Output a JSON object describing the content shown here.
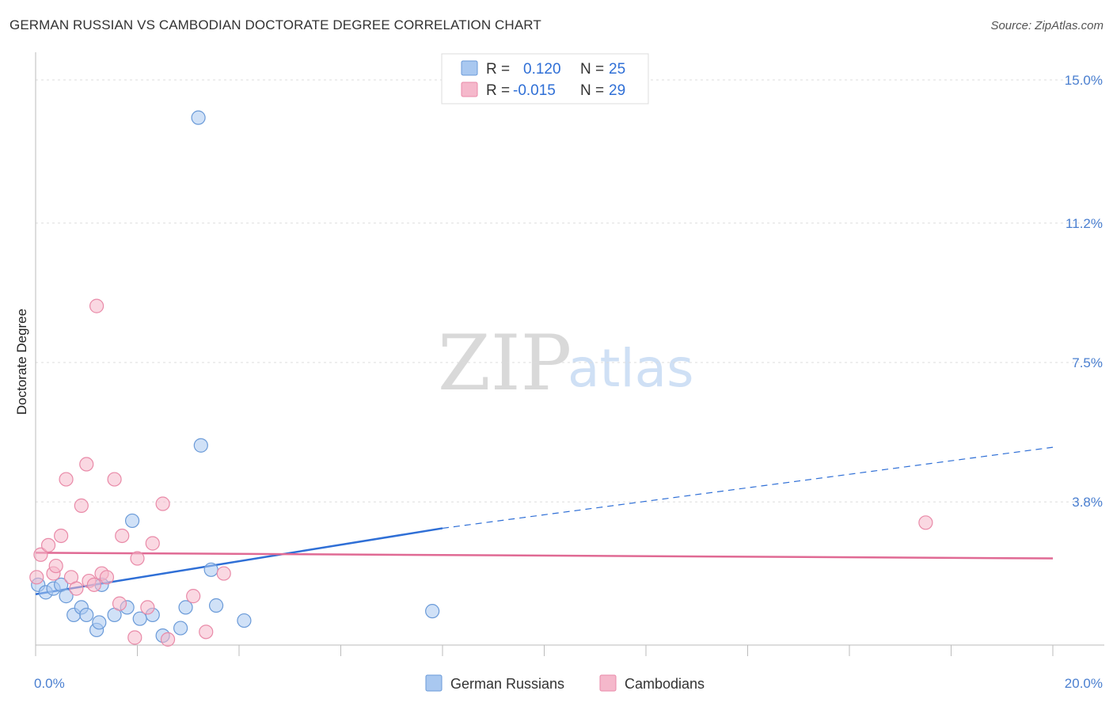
{
  "header": {
    "title": "GERMAN RUSSIAN VS CAMBODIAN DOCTORATE DEGREE CORRELATION CHART",
    "source": "Source: ZipAtlas.com"
  },
  "watermark": {
    "zip": "ZIP",
    "atlas": "atlas"
  },
  "legend": {
    "rows": [
      {
        "r_label": "R =",
        "r_value": "0.120",
        "n_label": "N =",
        "n_value": "25",
        "color": "#a9c8f0"
      },
      {
        "r_label": "R =",
        "r_value": "-0.015",
        "n_label": "N =",
        "n_value": "29",
        "color": "#f5b8cb"
      }
    ]
  },
  "bottom_legend": {
    "items": [
      {
        "label": "German Russians",
        "color": "#a9c8f0"
      },
      {
        "label": "Cambodians",
        "color": "#f5b8cb"
      }
    ]
  },
  "chart_data": {
    "type": "scatter",
    "title": "GERMAN RUSSIAN VS CAMBODIAN DOCTORATE DEGREE CORRELATION CHART",
    "xlabel": "",
    "ylabel": "Doctorate Degree",
    "xlim": [
      0,
      20
    ],
    "ylim": [
      0,
      15.4
    ],
    "x_tick_labels": [
      "0.0%",
      "20.0%"
    ],
    "y_ticks": [
      3.8,
      7.5,
      11.2,
      15.0
    ],
    "y_tick_labels": [
      "3.8%",
      "7.5%",
      "11.2%",
      "15.0%"
    ],
    "grid": true,
    "series": [
      {
        "name": "German Russians",
        "color": "#a9c8f0",
        "stroke": "#6a9ad8",
        "points": [
          [
            0.05,
            1.6
          ],
          [
            0.2,
            1.4
          ],
          [
            0.35,
            1.5
          ],
          [
            0.5,
            1.6
          ],
          [
            0.6,
            1.3
          ],
          [
            0.75,
            0.8
          ],
          [
            0.9,
            1.0
          ],
          [
            1.0,
            0.8
          ],
          [
            1.2,
            0.4
          ],
          [
            1.3,
            1.6
          ],
          [
            1.55,
            0.8
          ],
          [
            1.8,
            1.0
          ],
          [
            1.9,
            3.3
          ],
          [
            1.25,
            0.6
          ],
          [
            2.05,
            0.7
          ],
          [
            2.3,
            0.8
          ],
          [
            2.5,
            0.25
          ],
          [
            2.85,
            0.45
          ],
          [
            2.95,
            1.0
          ],
          [
            3.2,
            14.0
          ],
          [
            3.25,
            5.3
          ],
          [
            3.45,
            2.0
          ],
          [
            3.55,
            1.05
          ],
          [
            4.1,
            0.65
          ],
          [
            7.8,
            0.9
          ]
        ],
        "trend": {
          "x0": 0,
          "y0": 1.35,
          "x1": 8.0,
          "y1": 3.1,
          "dashed_to_x": 20,
          "dashed_to_y": 5.25,
          "color": "#2f6fd6"
        }
      },
      {
        "name": "Cambodians",
        "color": "#f5b8cb",
        "stroke": "#e98aa8",
        "points": [
          [
            0.02,
            1.8
          ],
          [
            0.1,
            2.4
          ],
          [
            0.25,
            2.65
          ],
          [
            0.35,
            1.9
          ],
          [
            0.4,
            2.1
          ],
          [
            0.5,
            2.9
          ],
          [
            0.6,
            4.4
          ],
          [
            0.7,
            1.8
          ],
          [
            0.8,
            1.5
          ],
          [
            0.9,
            3.7
          ],
          [
            1.0,
            4.8
          ],
          [
            1.05,
            1.7
          ],
          [
            1.15,
            1.6
          ],
          [
            1.3,
            1.9
          ],
          [
            1.2,
            9.0
          ],
          [
            1.4,
            1.8
          ],
          [
            1.55,
            4.4
          ],
          [
            1.65,
            1.1
          ],
          [
            1.7,
            2.9
          ],
          [
            1.95,
            0.2
          ],
          [
            2.0,
            2.3
          ],
          [
            2.2,
            1.0
          ],
          [
            2.3,
            2.7
          ],
          [
            2.5,
            3.75
          ],
          [
            2.6,
            0.15
          ],
          [
            3.1,
            1.3
          ],
          [
            3.35,
            0.35
          ],
          [
            3.7,
            1.9
          ],
          [
            17.5,
            3.25
          ]
        ],
        "trend": {
          "x0": 0,
          "y0": 2.45,
          "x1": 20,
          "y1": 2.3,
          "color": "#e06a94"
        }
      }
    ]
  }
}
